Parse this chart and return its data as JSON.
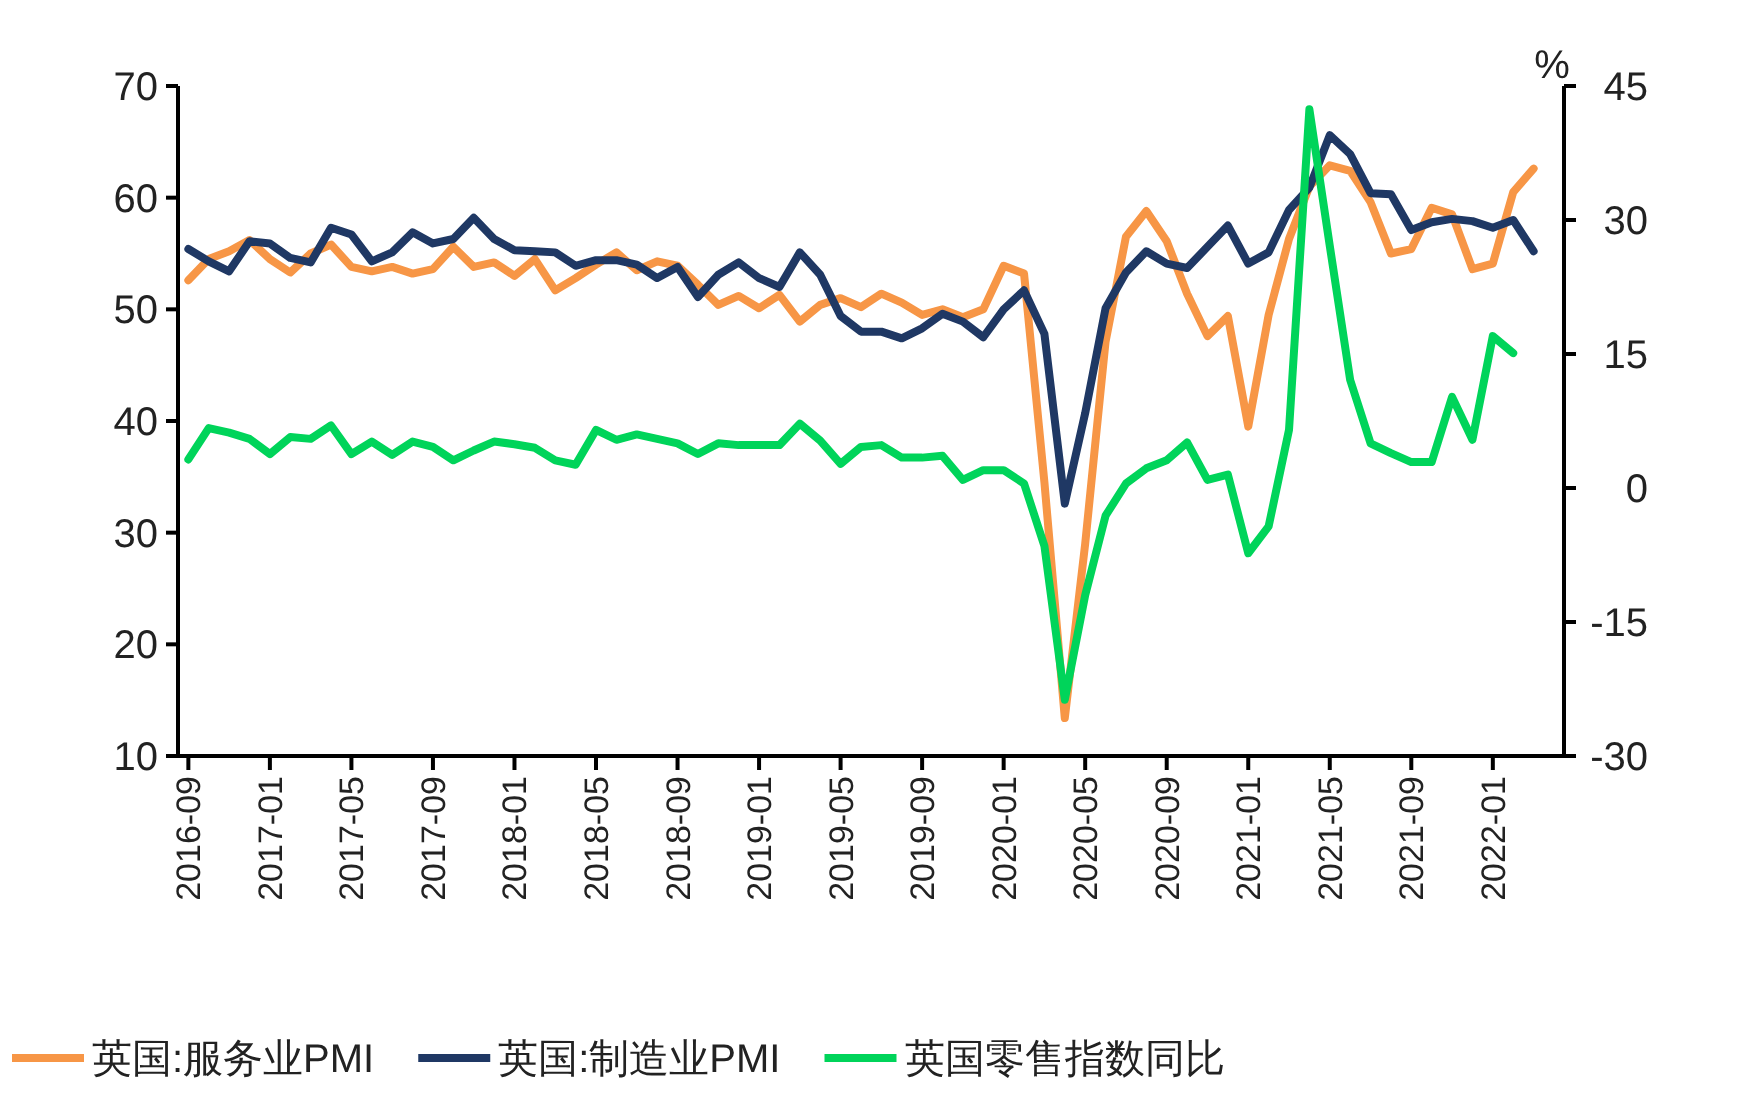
{
  "chart_data": {
    "type": "line",
    "y2label": "%",
    "legend": "bottom",
    "grid": false,
    "line_style": "solid",
    "marker": "none",
    "x": [
      "2016-09",
      "2016-10",
      "2016-11",
      "2016-12",
      "2017-01",
      "2017-02",
      "2017-03",
      "2017-04",
      "2017-05",
      "2017-06",
      "2017-07",
      "2017-08",
      "2017-09",
      "2017-10",
      "2017-11",
      "2017-12",
      "2018-01",
      "2018-02",
      "2018-03",
      "2018-04",
      "2018-05",
      "2018-06",
      "2018-07",
      "2018-08",
      "2018-09",
      "2018-10",
      "2018-11",
      "2018-12",
      "2019-01",
      "2019-02",
      "2019-03",
      "2019-04",
      "2019-05",
      "2019-06",
      "2019-07",
      "2019-08",
      "2019-09",
      "2019-10",
      "2019-11",
      "2019-12",
      "2020-01",
      "2020-02",
      "2020-03",
      "2020-04",
      "2020-05",
      "2020-06",
      "2020-07",
      "2020-08",
      "2020-09",
      "2020-10",
      "2020-11",
      "2020-12",
      "2021-01",
      "2021-02",
      "2021-03",
      "2021-04",
      "2021-05",
      "2021-06",
      "2021-07",
      "2021-08",
      "2021-09",
      "2021-10",
      "2021-11",
      "2021-12",
      "2022-01",
      "2022-02",
      "2022-03"
    ],
    "xlim": [
      "2016-08-16",
      "2022-04-16"
    ],
    "xticks": [
      "2016-09",
      "2017-01",
      "2017-05",
      "2017-09",
      "2018-01",
      "2018-05",
      "2018-09",
      "2019-01",
      "2019-05",
      "2019-09",
      "2020-01",
      "2020-05",
      "2020-09",
      "2021-01",
      "2021-05",
      "2021-09",
      "2022-01"
    ],
    "ylim": [
      10,
      70
    ],
    "yticks": [
      10,
      20,
      30,
      40,
      50,
      60,
      70
    ],
    "y2lim": [
      -30,
      45
    ],
    "y2ticks": [
      -30,
      -15,
      0,
      15,
      30,
      45
    ],
    "series": [
      {
        "name": "英国:服务业PMI",
        "color": "#f79646",
        "values": [
          52.6,
          54.5,
          55.2,
          56.2,
          54.5,
          53.3,
          55.0,
          55.8,
          53.8,
          53.4,
          53.8,
          53.2,
          53.6,
          55.6,
          53.8,
          54.2,
          53.0,
          54.5,
          51.7,
          52.8,
          54.0,
          55.1,
          53.5,
          54.3,
          53.9,
          52.2,
          50.4,
          51.2,
          50.1,
          51.3,
          48.9,
          50.4,
          51.0,
          50.2,
          51.4,
          50.6,
          49.5,
          50.0,
          49.3,
          50.0,
          53.9,
          53.2,
          34.5,
          13.4,
          29.0,
          47.1,
          56.5,
          58.8,
          56.1,
          51.4,
          47.6,
          49.4,
          39.5,
          49.5,
          56.3,
          61.0,
          62.9,
          62.4,
          59.6,
          55.0,
          55.4,
          59.1,
          58.5,
          53.6,
          54.1,
          60.5,
          62.6
        ]
      },
      {
        "name": "英国:制造业PMI",
        "color": "#1f3864",
        "values": [
          55.4,
          54.3,
          53.4,
          56.1,
          55.9,
          54.6,
          54.2,
          57.3,
          56.7,
          54.3,
          55.1,
          56.9,
          55.9,
          56.3,
          58.2,
          56.3,
          55.3,
          55.2,
          55.1,
          53.9,
          54.4,
          54.4,
          54.0,
          52.8,
          53.8,
          51.1,
          53.1,
          54.2,
          52.8,
          52.0,
          55.1,
          53.1,
          49.4,
          48.0,
          48.0,
          47.4,
          48.3,
          49.6,
          48.9,
          47.5,
          50.0,
          51.7,
          47.8,
          32.6,
          40.7,
          50.1,
          53.3,
          55.2,
          54.1,
          53.7,
          55.6,
          57.5,
          54.1,
          55.1,
          58.9,
          60.9,
          65.6,
          63.9,
          60.4,
          60.3,
          57.1,
          57.8,
          58.1,
          57.9,
          57.3,
          58.0,
          55.2
        ]
      },
      {
        "name": "英国零售指数同比",
        "color": "#00d45a",
        "axis": "y2",
        "values": [
          3.2,
          6.7,
          6.2,
          5.5,
          3.8,
          5.7,
          5.5,
          7.0,
          3.8,
          5.2,
          3.7,
          5.2,
          4.6,
          3.1,
          4.2,
          5.2,
          4.9,
          4.5,
          3.1,
          2.6,
          6.5,
          5.4,
          6.0,
          5.5,
          5.0,
          3.8,
          5.0,
          4.8,
          4.8,
          4.8,
          7.2,
          5.3,
          2.7,
          4.6,
          4.8,
          3.4,
          3.4,
          3.6,
          0.9,
          2.0,
          2.0,
          0.5,
          -6.5,
          -23.7,
          -12.0,
          -3.1,
          0.5,
          2.2,
          3.1,
          5.1,
          0.9,
          1.5,
          -7.3,
          -4.3,
          6.5,
          42.4,
          27.1,
          12.1,
          5.0,
          3.9,
          2.9,
          2.9,
          10.2,
          5.4,
          17.0,
          15.1,
          null
        ]
      }
    ]
  }
}
